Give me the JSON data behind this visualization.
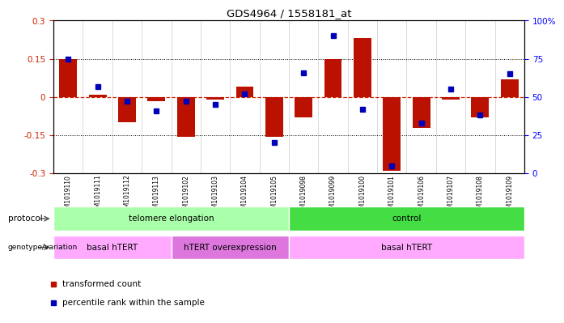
{
  "title": "GDS4964 / 1558181_at",
  "samples": [
    "GSM1019110",
    "GSM1019111",
    "GSM1019112",
    "GSM1019113",
    "GSM1019102",
    "GSM1019103",
    "GSM1019104",
    "GSM1019105",
    "GSM1019098",
    "GSM1019099",
    "GSM1019100",
    "GSM1019101",
    "GSM1019106",
    "GSM1019107",
    "GSM1019108",
    "GSM1019109"
  ],
  "transformed_count": [
    0.15,
    0.01,
    -0.1,
    -0.015,
    -0.155,
    -0.01,
    0.04,
    -0.155,
    -0.08,
    0.15,
    0.23,
    -0.29,
    -0.12,
    -0.01,
    -0.08,
    0.07
  ],
  "percentile_rank": [
    75,
    57,
    47,
    41,
    47,
    45,
    52,
    20,
    66,
    90,
    42,
    5,
    33,
    55,
    38,
    65
  ],
  "protocol_groups": [
    {
      "label": "telomere elongation",
      "start": 0,
      "end": 7,
      "color": "#aaffaa"
    },
    {
      "label": "control",
      "start": 8,
      "end": 15,
      "color": "#44dd44"
    }
  ],
  "genotype_groups": [
    {
      "label": "basal hTERT",
      "start": 0,
      "end": 3,
      "color": "#ffaaff"
    },
    {
      "label": "hTERT overexpression",
      "start": 4,
      "end": 7,
      "color": "#dd77dd"
    },
    {
      "label": "basal hTERT",
      "start": 8,
      "end": 15,
      "color": "#ffaaff"
    }
  ],
  "bar_color": "#bb1100",
  "dot_color": "#0000bb",
  "ylim_left": [
    -0.3,
    0.3
  ],
  "ylim_right": [
    0,
    100
  ],
  "yticks_left": [
    -0.3,
    -0.15,
    0.0,
    0.15,
    0.3
  ],
  "yticks_right": [
    0,
    25,
    50,
    75,
    100
  ],
  "hline_color": "#cc2200",
  "dotted_color": "black",
  "bg_color": "white",
  "plot_bg": "white",
  "legend_items": [
    "transformed count",
    "percentile rank within the sample"
  ],
  "legend_colors": [
    "#bb1100",
    "#0000bb"
  ],
  "bar_width": 0.6
}
